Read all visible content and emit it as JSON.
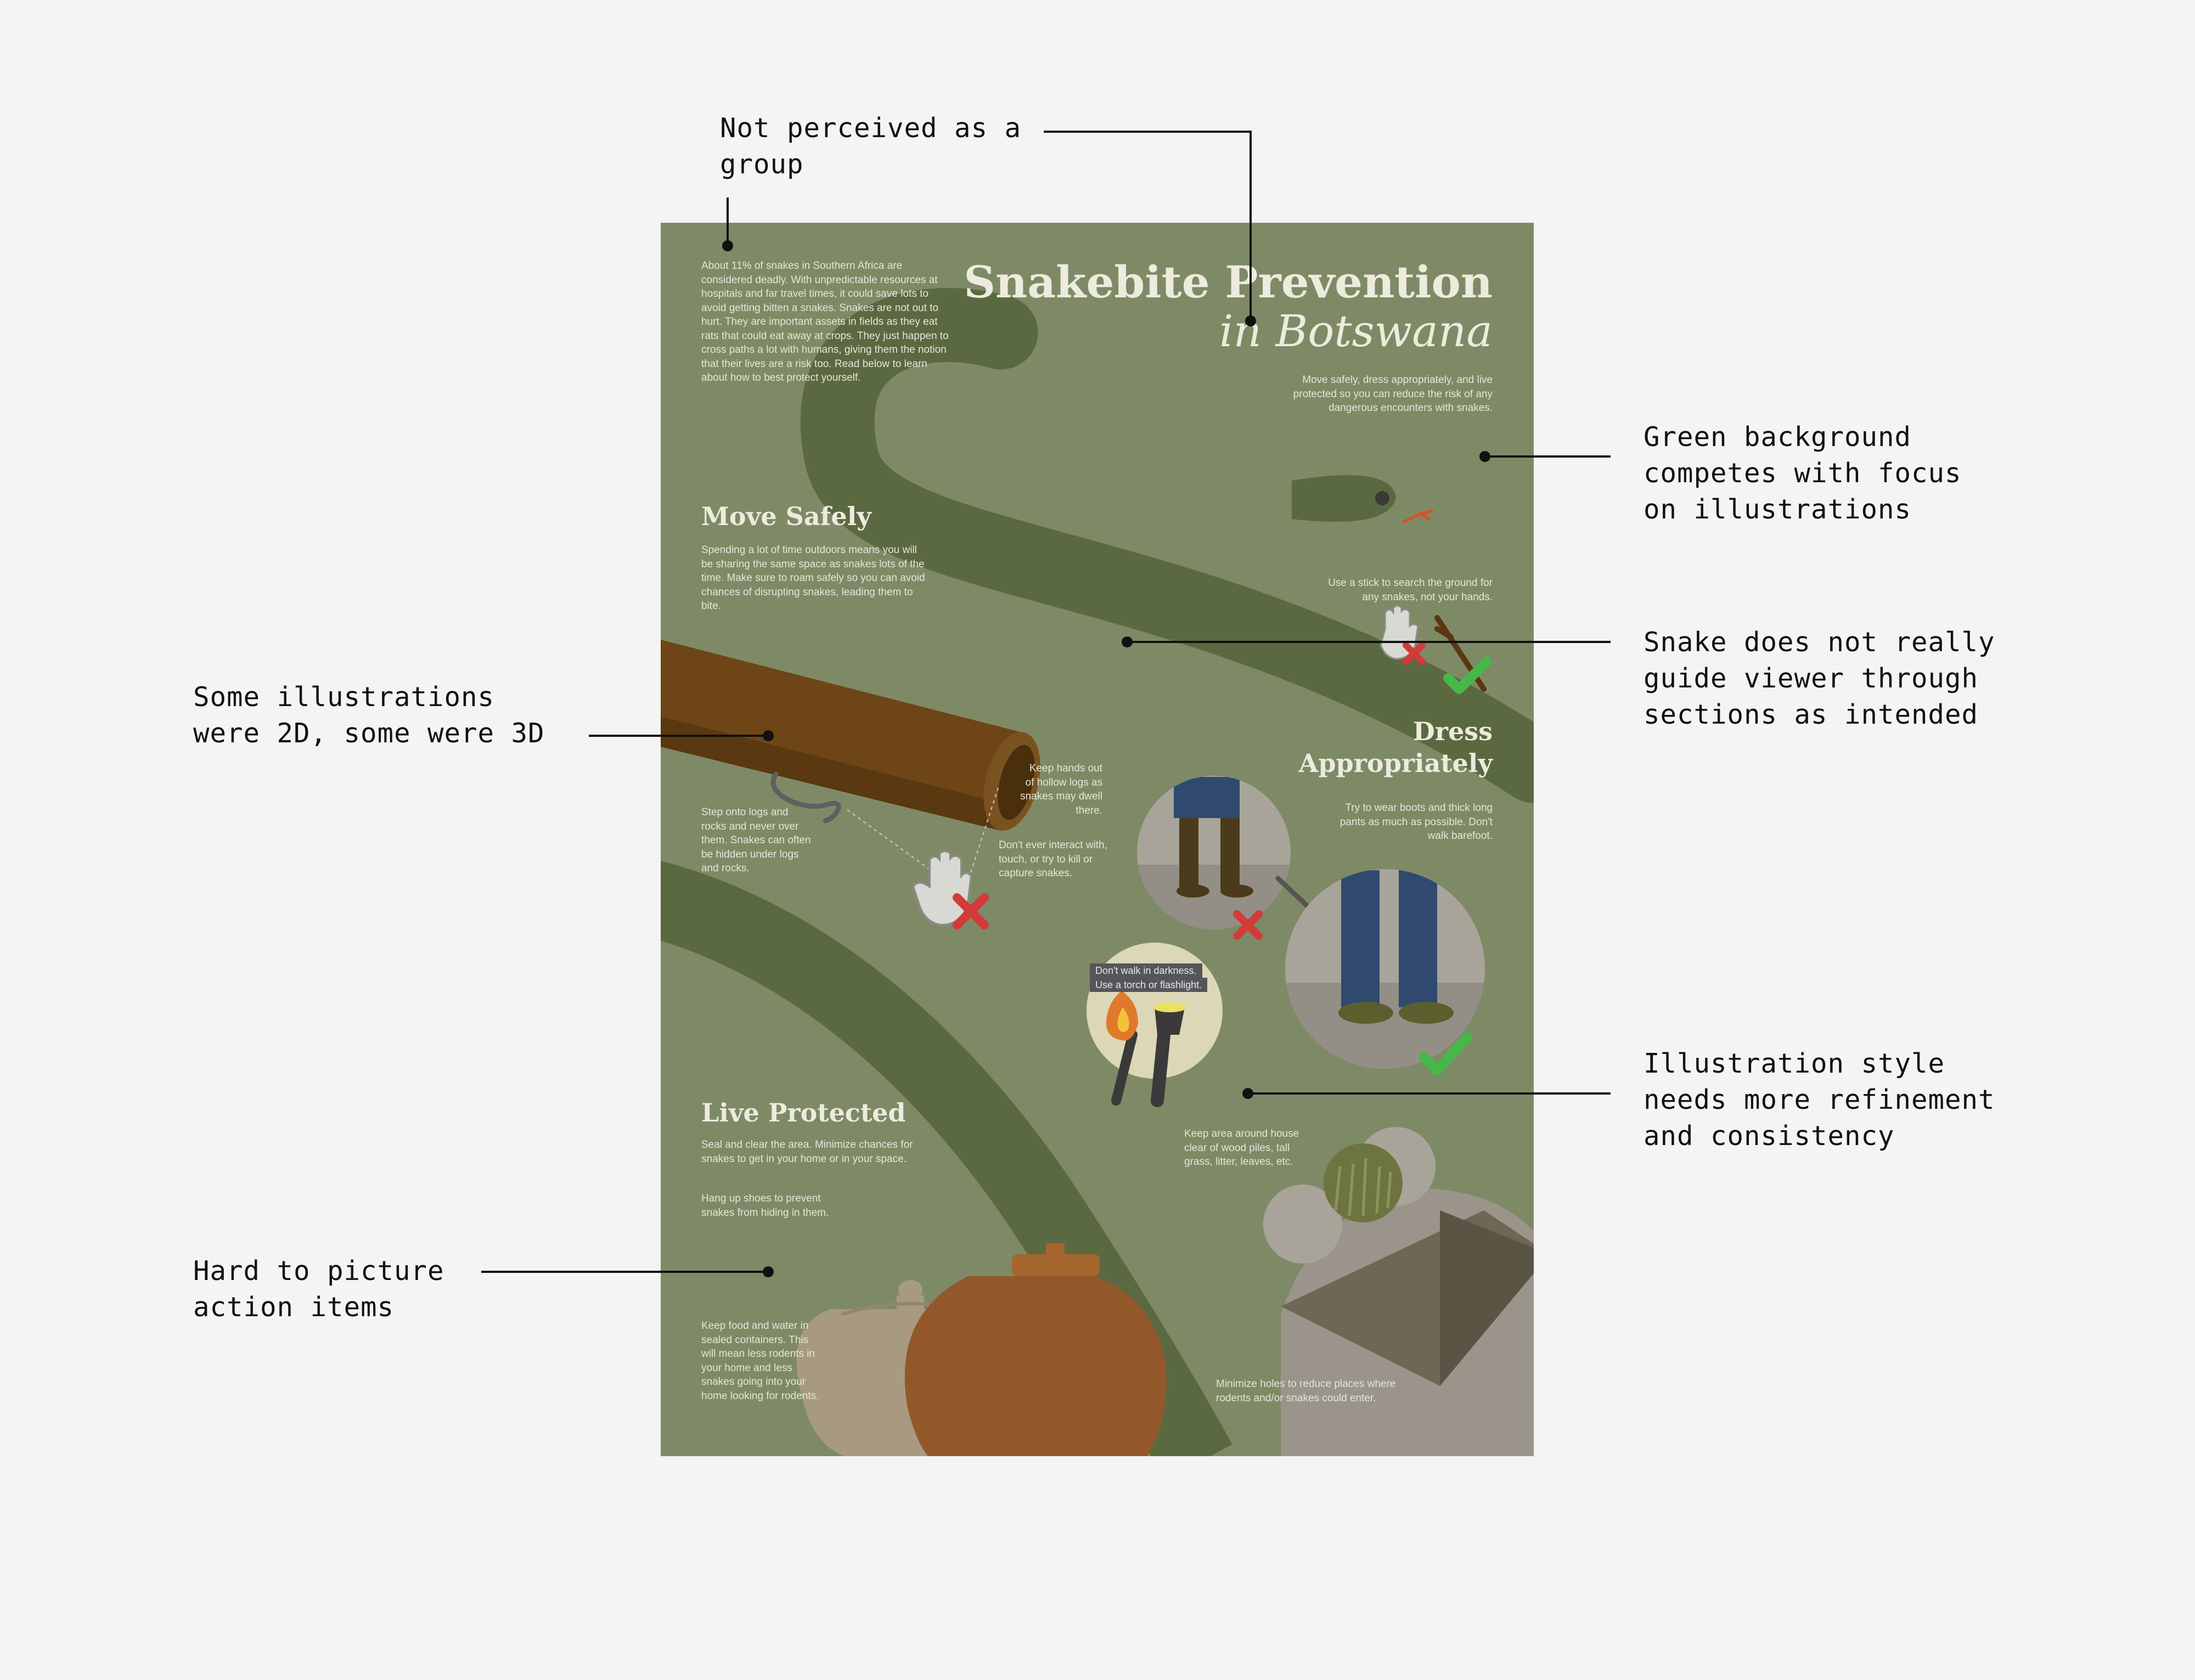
{
  "annotations": {
    "not_perceived": "Not perceived as a\ngroup",
    "green_background": "Green background\ncompetes with focus\non illustrations",
    "snake_guide": "Snake does not really\nguide viewer through\nsections as intended",
    "illustrations_2d_3d": "Some illustrations\nwere 2D, some were 3D",
    "style_refinement": "Illustration style\nneeds more refinement\nand consistency",
    "action_items": "Hard to picture\naction items"
  },
  "poster": {
    "title": "Snakebite Prevention",
    "subtitle": "in Botswana",
    "intro": "About 11% of snakes in Southern Africa are considered deadly. With unpredictable resources at hospitals and far travel times, it could save lots to avoid getting bitten a snakes. Snakes are not out to hurt. They are important assets in fields as they eat rats that could eat away at crops. They just happen to cross paths a lot with humans, giving them the notion that their lives are a risk too. Read below to learn about how to best protect yourself.",
    "tagline": "Move safely, dress appropriately, and live protected so you can reduce the risk of any dangerous encounters with snakes.",
    "move_safely": {
      "heading": "Move Safely",
      "body": "Spending a lot of time outdoors means you will be sharing the same space as snakes lots of the time. Make sure to roam safely so you can avoid chances of disrupting snakes, leading them to bite.",
      "stick_tip": "Use a stick to search the ground for any snakes, not your hands.",
      "hollow_logs": "Keep hands out of hollow logs as snakes may dwell there.",
      "step_onto": "Step onto logs and rocks and never over them. Snakes can often be hidden under logs and rocks.",
      "dont_interact": "Don't ever interact with, touch, or try to kill or capture snakes."
    },
    "dress": {
      "heading_line1": "Dress",
      "heading_line2": "Appropriately",
      "body": "Try to wear boots and thick long pants as much as possible. Don't walk barefoot.",
      "darkness_line1": "Don't walk in darkness.",
      "darkness_line2": "Use a torch or flashlight."
    },
    "live_protected": {
      "heading": "Live Protected",
      "seal": "Seal and clear the area. Minimize chances for snakes to get in your home or in your space.",
      "shoes": "Hang up shoes to prevent snakes from hiding in them.",
      "food": "Keep food and water in sealed containers. This will mean less rodents in your home and less snakes going into your home looking for rodents.",
      "area": "Keep area around house clear of wood piles, tall grass, litter, leaves, etc.",
      "holes": "Minimize holes to reduce places where rodents and/or snakes could enter."
    }
  },
  "colors": {
    "page_background": "#f4f4f4",
    "poster_green": "#7e8a66",
    "snake_green": "#5a6a40",
    "log_brown": "#6e4516",
    "pot_orange": "#93582a",
    "check_green": "#46b84a",
    "cross_red": "#d33a3a"
  },
  "icons": [
    "hand-icon",
    "cross-icon",
    "check-icon",
    "stick-icon",
    "torch-icon",
    "flashlight-icon",
    "arrow-icon"
  ]
}
